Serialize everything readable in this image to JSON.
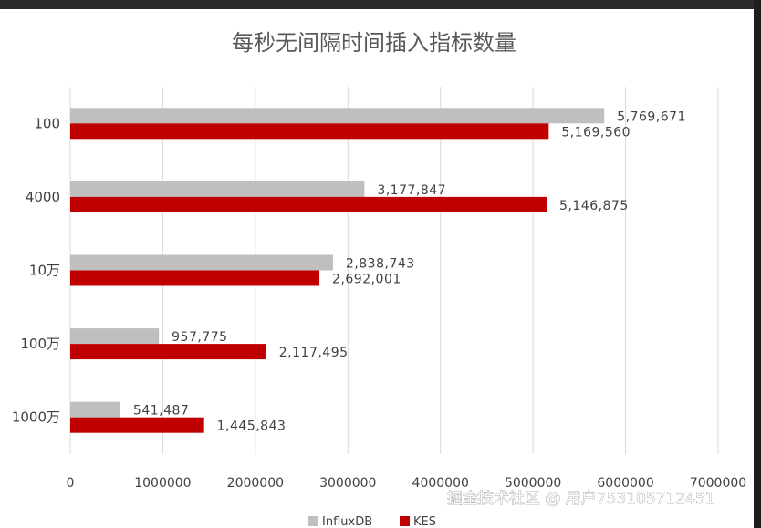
{
  "chart_data": {
    "type": "bar",
    "orientation": "horizontal",
    "title": "每秒无间隔时间插入指标数量",
    "categories": [
      "100",
      "4000",
      "10万",
      "100万",
      "1000万"
    ],
    "series": [
      {
        "name": "InfluxDB",
        "color": "#bfbfbf",
        "values": [
          5769671,
          3177847,
          2838743,
          957775,
          541487
        ],
        "labels": [
          "5,769,671",
          "3,177,847",
          "2,838,743",
          "957,775",
          "541,487"
        ]
      },
      {
        "name": "KES",
        "color": "#c00000",
        "values": [
          5169560,
          5146875,
          2692001,
          2117495,
          1445843
        ],
        "labels": [
          "5,169,560",
          "5,146,875",
          "2,692,001",
          "2,117,495",
          "1,445,843"
        ]
      }
    ],
    "xlim": [
      0,
      7000000
    ],
    "x_ticks": [
      "0",
      "1000000",
      "2000000",
      "3000000",
      "4000000",
      "5000000",
      "6000000",
      "7000000"
    ],
    "grid": true,
    "legend_position": "bottom"
  },
  "watermark": "掘金技术社区 @ 用户753105712451"
}
